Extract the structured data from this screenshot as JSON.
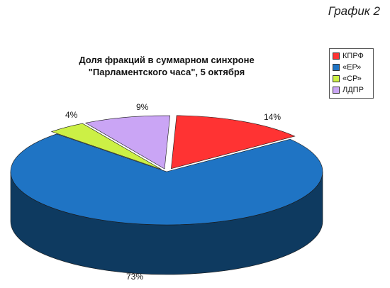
{
  "page": {
    "corner_label": "График 2"
  },
  "chart_data": {
    "type": "pie",
    "title_lines": [
      "Доля фракций в суммарном синхроне",
      "\"Парламентского часа\", 5 октября"
    ],
    "legend_position": "right",
    "slices": [
      {
        "name": "КПРФ",
        "value": 14,
        "label": "14%",
        "color": "#ff3333",
        "color_side": "#b52020"
      },
      {
        "name": "«ЕР»",
        "value": 73,
        "label": "73%",
        "color": "#1f74c4",
        "color_side": "#0e3a60"
      },
      {
        "name": "«СР»",
        "value": 4,
        "label": "4%",
        "color": "#ccf045",
        "color_side": "#8aa628"
      },
      {
        "name": "ЛДПР",
        "value": 9,
        "label": "9%",
        "color": "#caa5f5",
        "color_side": "#8a63b8"
      }
    ]
  }
}
